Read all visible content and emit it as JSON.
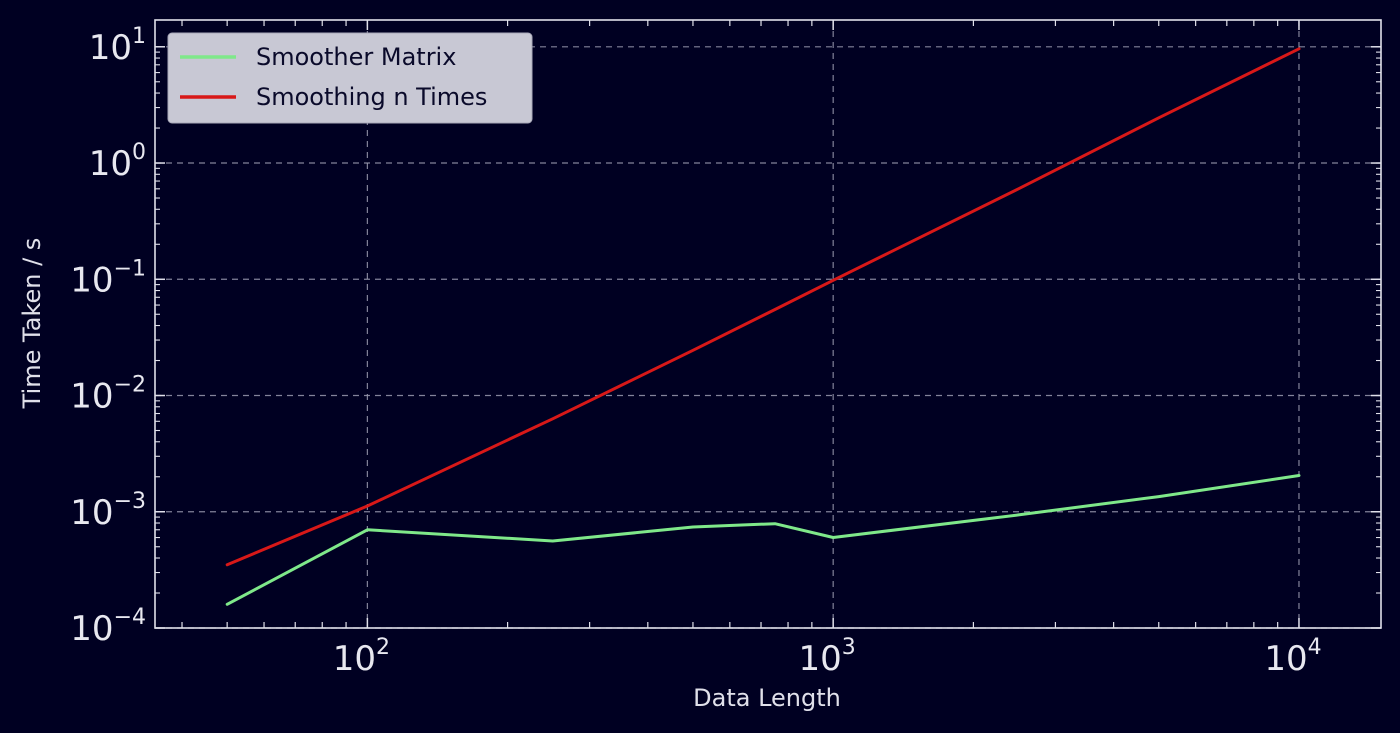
{
  "chart_data": {
    "type": "line",
    "title": "",
    "xlabel": "Data Length",
    "ylabel": "Time Taken / s",
    "xscale": "log",
    "yscale": "log",
    "xlim": [
      35,
      15000
    ],
    "ylim": [
      0.0001,
      17
    ],
    "grid": true,
    "legend_position": "top-left",
    "x_ticks": [
      {
        "value": 100,
        "base": "10",
        "exp": "2"
      },
      {
        "value": 1000,
        "base": "10",
        "exp": "3"
      },
      {
        "value": 10000,
        "base": "10",
        "exp": "4"
      }
    ],
    "y_ticks": [
      {
        "value": 0.0001,
        "base": "10",
        "exp": "−4"
      },
      {
        "value": 0.001,
        "base": "10",
        "exp": "−3"
      },
      {
        "value": 0.01,
        "base": "10",
        "exp": "−2"
      },
      {
        "value": 0.1,
        "base": "10",
        "exp": "−1"
      },
      {
        "value": 1,
        "base": "10",
        "exp": "0"
      },
      {
        "value": 10,
        "base": "10",
        "exp": "1"
      }
    ],
    "series": [
      {
        "name": "Smoother Matrix",
        "color": "#7fe88a",
        "x": [
          50,
          100,
          250,
          500,
          750,
          1000,
          2500,
          5000,
          10000
        ],
        "y": [
          0.00016,
          0.0007,
          0.00056,
          0.00074,
          0.00079,
          0.0006,
          0.00094,
          0.00135,
          0.00205
        ]
      },
      {
        "name": "Smoothing n Times",
        "color": "#d81818",
        "x": [
          50,
          100,
          250,
          500,
          750,
          1000,
          2500,
          5000,
          10000
        ],
        "y": [
          0.00035,
          0.00112,
          0.0063,
          0.0245,
          0.055,
          0.098,
          0.6,
          2.45,
          9.6
        ]
      }
    ],
    "colors": {
      "background": "#000022",
      "axes": "#e0e0ea",
      "grid": "#9a9ab0",
      "legend_bg": "#c8c8d4"
    }
  }
}
